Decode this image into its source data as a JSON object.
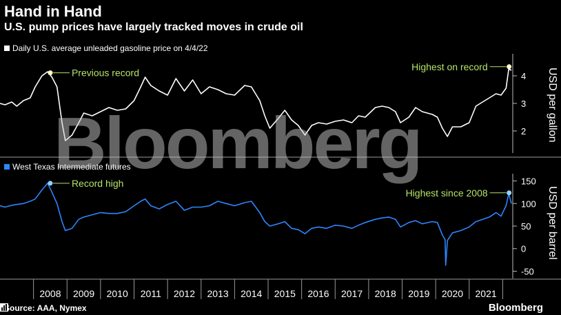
{
  "header": {
    "title": "Hand in Hand",
    "subtitle": "U.S. pump prices have largely tracked moves in crude oil"
  },
  "footer": {
    "source": "Source: AAA, Nymex",
    "brand": "Bloomberg"
  },
  "watermark": "Bloomberg",
  "colors": {
    "gasoline": "#ffffff",
    "wti": "#2e86ff",
    "annotation": "#b6e36a",
    "background": "#000000"
  },
  "chart_data": [
    {
      "type": "line",
      "legend": "Daily U.S. average unleaded gasoline price on 4/4/22",
      "ylabel": "USD per gallon",
      "ylim": [
        1.3,
        4.6
      ],
      "yticks": [
        2,
        3,
        4
      ],
      "series": [
        {
          "name": "Daily U.S. average unleaded gasoline price on 4/4/22",
          "x": [
            2007.0,
            2007.15,
            2007.35,
            2007.5,
            2007.7,
            2007.9,
            2008.05,
            2008.25,
            2008.42,
            2008.55,
            2008.7,
            2008.85,
            2008.95,
            2009.15,
            2009.35,
            2009.5,
            2009.75,
            2010.0,
            2010.25,
            2010.5,
            2010.75,
            2011.0,
            2011.2,
            2011.33,
            2011.5,
            2011.75,
            2012.0,
            2012.25,
            2012.5,
            2012.75,
            2013.0,
            2013.25,
            2013.5,
            2013.75,
            2014.0,
            2014.3,
            2014.5,
            2014.75,
            2014.9,
            2015.05,
            2015.3,
            2015.5,
            2015.7,
            2015.9,
            2016.1,
            2016.3,
            2016.5,
            2016.75,
            2017.0,
            2017.25,
            2017.5,
            2017.7,
            2017.9,
            2018.2,
            2018.4,
            2018.6,
            2018.8,
            2018.95,
            2019.2,
            2019.4,
            2019.6,
            2019.9,
            2020.05,
            2020.2,
            2020.35,
            2020.5,
            2020.75,
            2021.0,
            2021.2,
            2021.4,
            2021.6,
            2021.8,
            2021.95,
            2022.1,
            2022.18,
            2022.26
          ],
          "y": [
            3.0,
            2.95,
            3.05,
            2.9,
            3.1,
            3.2,
            3.6,
            4.0,
            4.15,
            3.95,
            3.6,
            2.3,
            1.65,
            1.85,
            2.3,
            2.65,
            2.55,
            2.7,
            2.85,
            2.75,
            2.8,
            3.1,
            3.6,
            3.95,
            3.65,
            3.45,
            3.3,
            3.9,
            3.45,
            3.85,
            3.35,
            3.6,
            3.5,
            3.35,
            3.3,
            3.65,
            3.6,
            3.1,
            2.55,
            2.1,
            2.45,
            2.75,
            2.4,
            2.2,
            1.85,
            2.2,
            2.3,
            2.25,
            2.35,
            2.4,
            2.3,
            2.55,
            2.5,
            2.85,
            2.9,
            2.85,
            2.7,
            2.3,
            2.5,
            2.85,
            2.7,
            2.6,
            2.5,
            2.1,
            1.8,
            2.15,
            2.15,
            2.3,
            2.9,
            3.05,
            3.2,
            3.35,
            3.3,
            3.55,
            4.25,
            4.2
          ]
        }
      ],
      "annotations": [
        {
          "label": "Previous record",
          "x": 2008.5,
          "y": 4.11
        },
        {
          "label": "Highest on record",
          "x": 2022.19,
          "y": 4.33
        }
      ]
    },
    {
      "type": "line",
      "legend": "West Texas Intermediate futures",
      "ylabel": "USD per barrel",
      "ylim": [
        -60,
        160
      ],
      "yticks": [
        -50,
        0,
        50,
        100,
        150
      ],
      "xlim": [
        2007.0,
        2022.3
      ],
      "xticks": [
        "2008",
        "2009",
        "2010",
        "2011",
        "2012",
        "2013",
        "2014",
        "2015",
        "2016",
        "2017",
        "2018",
        "2019",
        "2020",
        "2021"
      ],
      "series": [
        {
          "name": "West Texas Intermediate futures",
          "x": [
            2007.0,
            2007.15,
            2007.35,
            2007.5,
            2007.7,
            2007.9,
            2008.05,
            2008.25,
            2008.42,
            2008.55,
            2008.7,
            2008.85,
            2008.95,
            2009.15,
            2009.35,
            2009.5,
            2009.75,
            2010.0,
            2010.25,
            2010.5,
            2010.75,
            2011.0,
            2011.2,
            2011.33,
            2011.5,
            2011.75,
            2012.0,
            2012.25,
            2012.5,
            2012.75,
            2013.0,
            2013.25,
            2013.5,
            2013.75,
            2014.0,
            2014.3,
            2014.5,
            2014.75,
            2014.9,
            2015.05,
            2015.3,
            2015.5,
            2015.7,
            2015.9,
            2016.1,
            2016.3,
            2016.5,
            2016.75,
            2017.0,
            2017.25,
            2017.5,
            2017.7,
            2017.9,
            2018.2,
            2018.4,
            2018.6,
            2018.8,
            2018.95,
            2019.2,
            2019.4,
            2019.6,
            2019.9,
            2020.05,
            2020.2,
            2020.28,
            2020.3,
            2020.35,
            2020.5,
            2020.75,
            2021.0,
            2021.2,
            2021.4,
            2021.6,
            2021.8,
            2021.95,
            2022.1,
            2022.18,
            2022.26
          ],
          "y": [
            95,
            92,
            96,
            98,
            100,
            105,
            110,
            130,
            145,
            125,
            100,
            60,
            40,
            45,
            65,
            70,
            75,
            80,
            78,
            78,
            82,
            95,
            105,
            110,
            95,
            88,
            98,
            105,
            85,
            92,
            92,
            95,
            105,
            100,
            95,
            102,
            105,
            80,
            60,
            50,
            55,
            60,
            45,
            42,
            33,
            45,
            48,
            45,
            52,
            50,
            45,
            52,
            58,
            65,
            68,
            70,
            65,
            48,
            58,
            62,
            55,
            60,
            58,
            30,
            20,
            -37,
            18,
            35,
            40,
            48,
            60,
            65,
            70,
            80,
            72,
            95,
            122,
            100
          ]
        }
      ],
      "annotations": [
        {
          "label": "Record high",
          "x": 2008.5,
          "y": 145
        },
        {
          "label": "Highest since 2008",
          "x": 2022.19,
          "y": 123.7
        }
      ]
    }
  ]
}
